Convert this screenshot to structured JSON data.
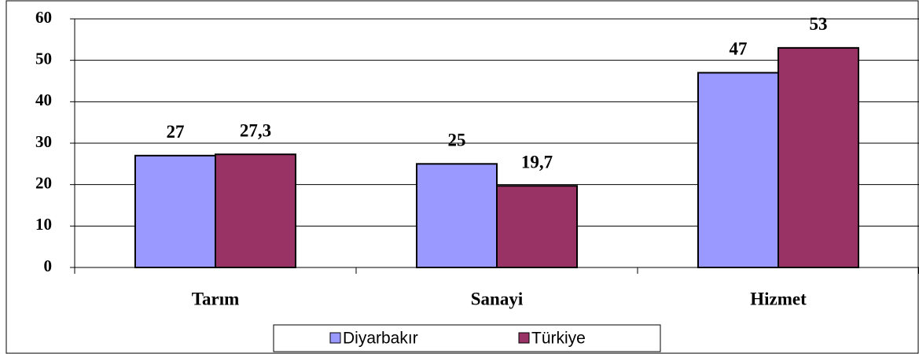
{
  "chart_data": {
    "type": "bar",
    "categories": [
      "Tarım",
      "Sanayi",
      "Hizmet"
    ],
    "series": [
      {
        "name": "Diyarbakır",
        "color": "#9999ff",
        "values": [
          27,
          25,
          47
        ],
        "value_labels": [
          "27",
          "25",
          "47"
        ]
      },
      {
        "name": "Türkiye",
        "color": "#993366",
        "values": [
          27.3,
          19.7,
          53
        ],
        "value_labels": [
          "27,3",
          "19,7",
          "53"
        ]
      }
    ],
    "ylim": [
      0,
      60
    ],
    "yticks": [
      0,
      10,
      20,
      30,
      40,
      50,
      60
    ],
    "grid": true,
    "legend": "bottom"
  }
}
